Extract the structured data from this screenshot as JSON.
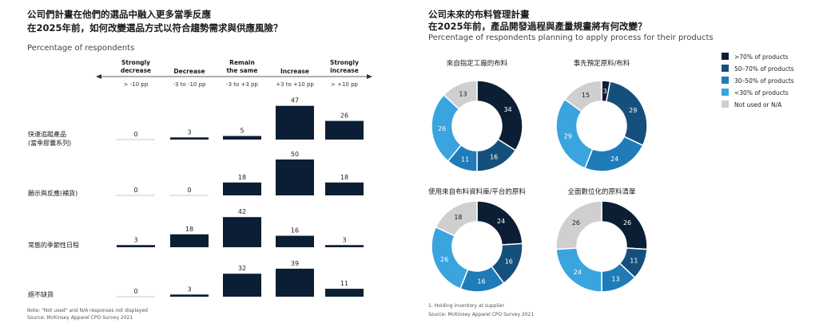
{
  "left": {
    "title_line1": "公司們計畫在他們的選品中融入更多當季反應",
    "title_line2": "在2025年前，如何改變選品方式以符合趨勢需求與供應風險？",
    "subtitle": "Percentage of respondents",
    "footnote": "Note: \"Not used\" and N/A responses not displayed",
    "source": "Source: McKinsey Apparel CPO Survey 2021"
  },
  "right": {
    "title_line1": "公司未來的布料管理計畫",
    "title_line2": "在2025年前，產品開發過程與產量規畫將有何改變？",
    "subtitle": "Percentage of respondents planning to apply process for their products",
    "footnote": "1.  Holding inventory at supplier",
    "source": "Source: McKinsey Apparel CPO Survey 2021"
  },
  "colors": {
    "bar": "#0b1e33",
    "baseline": "#c8c8c8",
    "donut": [
      "#0b1e33",
      "#15507c",
      "#1f7cb8",
      "#3aa4df",
      "#cfcfcf"
    ]
  },
  "chart_data": [
    {
      "type": "bar",
      "title": "公司們計畫在他們的選品中融入更多當季反應",
      "subtitle": "Percentage of respondents",
      "columns": [
        {
          "label": "Strongly\ndecrease",
          "range": "> -10 pp"
        },
        {
          "label": "Decrease",
          "range": "-3 to -10 pp"
        },
        {
          "label": "Remain\nthe same",
          "range": "-3 to +3 pp"
        },
        {
          "label": "Increase",
          "range": "+3 to +10 pp"
        },
        {
          "label": "Strongly\nincrease",
          "range": "> +10 pp"
        }
      ],
      "rows": [
        {
          "label": "快速追蹤產品\n(當季膠囊系列)",
          "values": [
            0,
            3,
            5,
            47,
            26
          ]
        },
        {
          "label": "願示與反應(補貨)",
          "values": [
            0,
            0,
            18,
            50,
            18
          ]
        },
        {
          "label": "常態的季節性日程",
          "values": [
            3,
            18,
            42,
            16,
            3
          ]
        },
        {
          "label": "絕不缺貨",
          "values": [
            0,
            3,
            32,
            39,
            11
          ]
        }
      ]
    },
    {
      "type": "pie",
      "title": "公司未來的布料管理計畫",
      "legend": [
        ">70% of products",
        "50–70% of products",
        "30–50% of products",
        "<30% of products",
        "Not used or N/A"
      ],
      "legend_position": "right",
      "charts": [
        {
          "title": "來自指定工廠的布料",
          "values": [
            34,
            16,
            11,
            26,
            13
          ]
        },
        {
          "title": "事先預定原料/布料",
          "values": [
            3,
            29,
            24,
            29,
            15
          ]
        },
        {
          "title": "使用來自布料資料庫/平台的原料",
          "values": [
            24,
            16,
            16,
            26,
            18
          ]
        },
        {
          "title": "全面數位化的原料清單",
          "values": [
            26,
            11,
            13,
            24,
            26
          ]
        }
      ]
    }
  ]
}
